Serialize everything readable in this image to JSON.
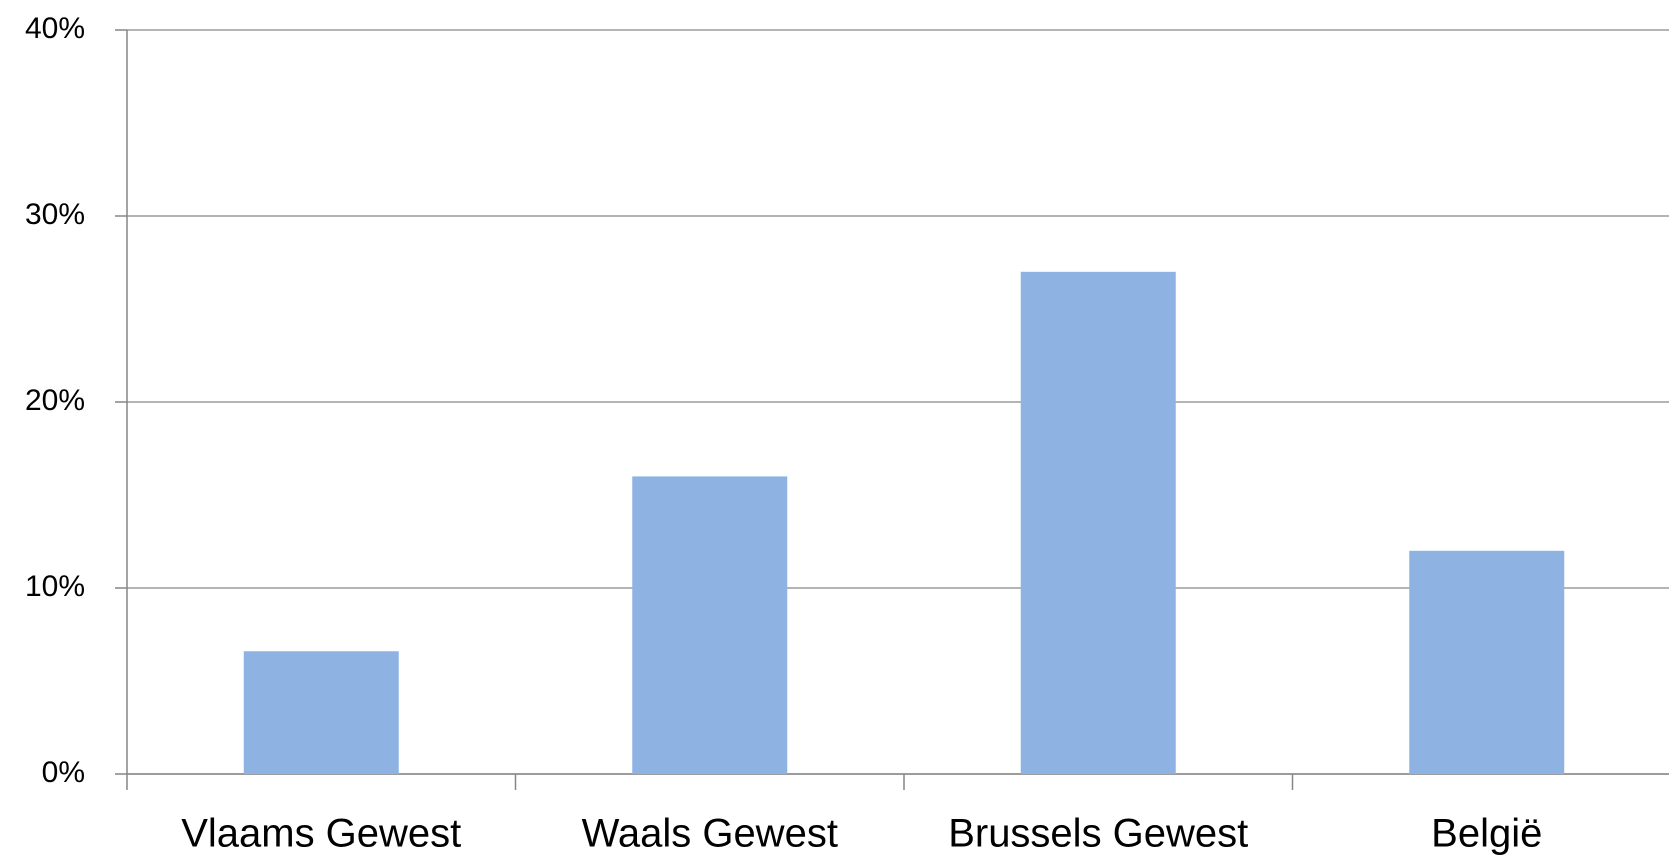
{
  "chart_data": {
    "type": "bar",
    "categories": [
      "Vlaams Gewest",
      "Waals Gewest",
      "Brussels Gewest",
      "België"
    ],
    "values": [
      6.6,
      16,
      27,
      12
    ],
    "color": "#8eb3e2",
    "ylim": [
      0,
      40
    ],
    "yticks": [
      {
        "value": 0,
        "label": "0%"
      },
      {
        "value": 10,
        "label": "10%"
      },
      {
        "value": 20,
        "label": "20%"
      },
      {
        "value": 30,
        "label": "30%"
      },
      {
        "value": 40,
        "label": "40%"
      }
    ],
    "grid": true
  }
}
